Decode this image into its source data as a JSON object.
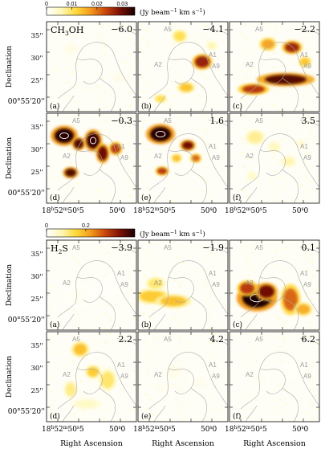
{
  "chart_data": [
    {
      "type": "heatmap",
      "molecule": "CH$_3$OH",
      "molecule_label": "CH",
      "molecule_sub": "3",
      "molecule_tail": "OH",
      "colorbar": {
        "ticks": [
          "0",
          "0.01",
          "0.02",
          "0.03"
        ],
        "tick_values": [
          0,
          0.01,
          0.02,
          0.03
        ],
        "range": [
          0,
          0.035
        ],
        "unit_prefix": "(Jy beam",
        "unit_exp1": "−1",
        "unit_mid": " km s",
        "unit_exp2": "−1",
        "unit_suffix": ")"
      },
      "ylabel": "Declination",
      "yticks": [
        "35''",
        "30''",
        "25''",
        "00°55'20''"
      ],
      "xticks": [
        "18h52m50s5",
        "50s0"
      ],
      "panels": [
        {
          "letter": "(a)",
          "velocity": "−6.0",
          "sources": [],
          "peak": 0.012
        },
        {
          "letter": "(b)",
          "velocity": "−4.1",
          "sources": [
            "A5",
            "A2",
            "A1",
            "A9"
          ],
          "peak": 0.03
        },
        {
          "letter": "(c)",
          "velocity": "−2.2",
          "sources": [
            "A5",
            "A2",
            "A1",
            "A9"
          ],
          "peak": 0.033
        },
        {
          "letter": "(d)",
          "velocity": "−0.3",
          "sources": [
            "A5",
            "A2",
            "A1",
            "A9"
          ],
          "peak": 0.035
        },
        {
          "letter": "(e)",
          "velocity": "1.6",
          "sources": [
            "A5",
            "A2",
            "A1",
            "A9"
          ],
          "peak": 0.035
        },
        {
          "letter": "(f)",
          "velocity": "3.5",
          "sources": [
            "A5",
            "A2",
            "A1",
            "A9"
          ],
          "peak": 0.015
        }
      ]
    },
    {
      "type": "heatmap",
      "molecule": "H$_2$S",
      "molecule_label": "H",
      "molecule_sub": "2",
      "molecule_tail": "S",
      "colorbar": {
        "ticks": [
          "0",
          "0.2"
        ],
        "tick_values": [
          0,
          0.2
        ],
        "range": [
          0,
          0.45
        ],
        "unit_prefix": "(Jy beam",
        "unit_exp1": "−1",
        "unit_mid": " km s",
        "unit_exp2": "−1",
        "unit_suffix": ")"
      },
      "ylabel": "Declination",
      "xlabel": "Right Ascension",
      "yticks": [
        "35''",
        "30''",
        "25''",
        "00°55'20''"
      ],
      "xticks": [
        "18h52m50s5",
        "50s0"
      ],
      "panels": [
        {
          "letter": "(a)",
          "velocity": "−3.9",
          "sources": [
            "A5",
            "A2",
            "A1",
            "A9"
          ],
          "peak": 0.03
        },
        {
          "letter": "(b)",
          "velocity": "−1.9",
          "sources": [
            "A5",
            "A2",
            "A1",
            "A9"
          ],
          "peak": 0.3
        },
        {
          "letter": "(c)",
          "velocity": "0.1",
          "sources": [
            "A5",
            "A2",
            "A1",
            "A9"
          ],
          "peak": 0.45
        },
        {
          "letter": "(d)",
          "velocity": "2.2",
          "sources": [
            "A5",
            "A2",
            "A1",
            "A9"
          ],
          "peak": 0.3
        },
        {
          "letter": "(e)",
          "velocity": "4.2",
          "sources": [
            "A5",
            "A2",
            "A1",
            "A9"
          ],
          "peak": 0.1
        },
        {
          "letter": "(f)",
          "velocity": "6.2",
          "sources": [
            "A5",
            "A2",
            "A1",
            "A9"
          ],
          "peak": 0.05
        }
      ]
    }
  ],
  "colors": {
    "colormap": [
      "#ffffff",
      "#fff7b8",
      "#ffd93a",
      "#f39a1e",
      "#c8460b",
      "#7a1006",
      "#1c0000"
    ],
    "contour": "#a8a8a8",
    "source_label": "#9a9a9a",
    "white_contour": "#ffffff"
  }
}
